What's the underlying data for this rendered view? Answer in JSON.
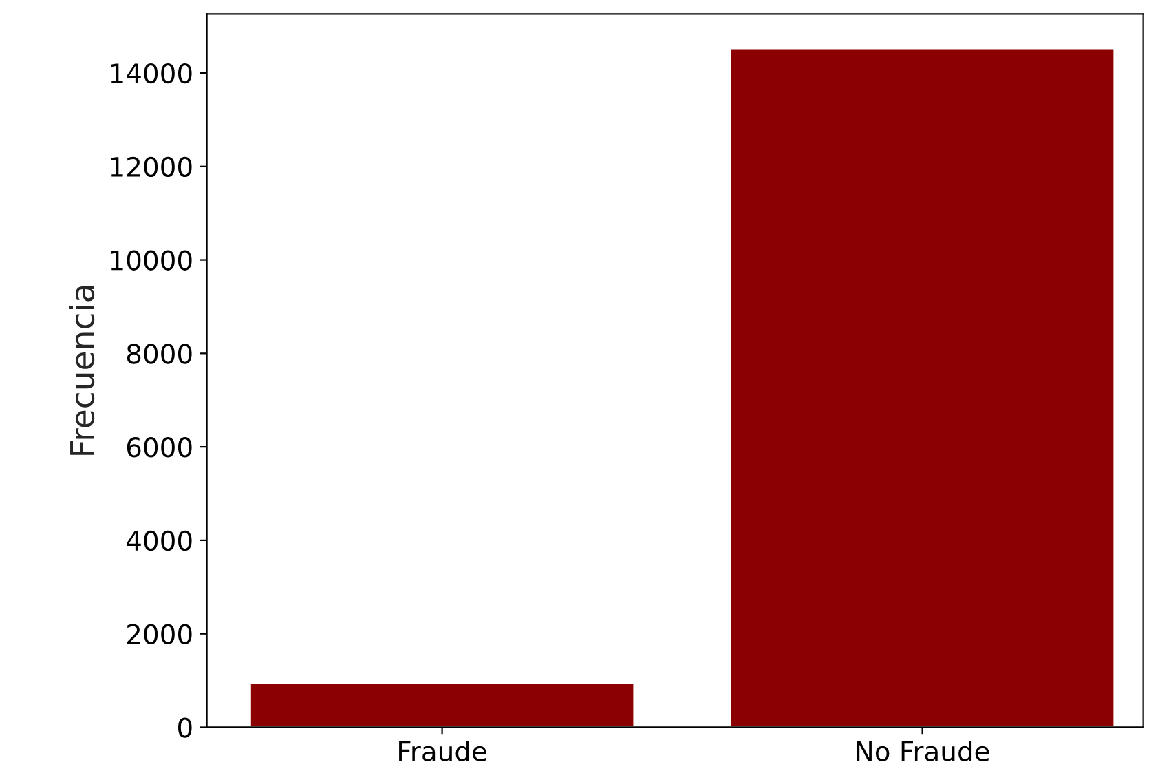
{
  "chart_data": {
    "type": "bar",
    "ylabel": "Frecuencia",
    "categories": [
      "Fraude",
      "No Fraude"
    ],
    "values": [
      940,
      14530
    ],
    "color": "#8b0000",
    "ylim": [
      0,
      15260
    ],
    "yticks": [
      0,
      2000,
      4000,
      6000,
      8000,
      10000,
      12000,
      14000
    ],
    "grid": false,
    "legend": false
  }
}
